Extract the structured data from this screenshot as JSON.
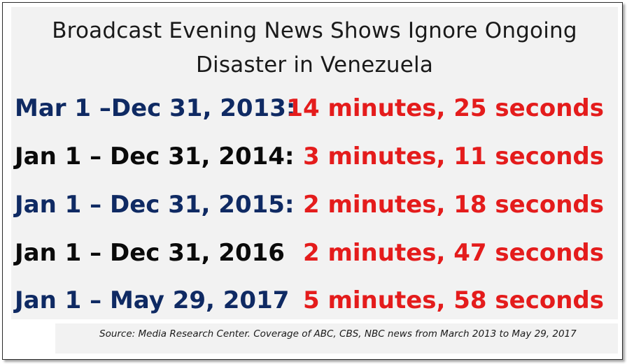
{
  "title": {
    "line1": "Broadcast Evening News Shows Ignore Ongoing",
    "line2": "Disaster in Venezuela"
  },
  "rows": [
    {
      "period": "Mar 1 –Dec 31, 2013:",
      "duration": "14 minutes, 25 seconds",
      "period_color": "#0f2a63"
    },
    {
      "period": "Jan 1 – Dec 31, 2014:",
      "duration": "3 minutes, 11 seconds",
      "period_color": "#0a0a0a"
    },
    {
      "period": "Jan 1 – Dec 31, 2015:",
      "duration": "2 minutes, 18 seconds",
      "period_color": "#0f2a63"
    },
    {
      "period": "Jan 1 – Dec 31, 2016",
      "duration": "2 minutes, 47 seconds",
      "period_color": "#0a0a0a"
    },
    {
      "period": "Jan 1 – May 29, 2017",
      "duration": "5 minutes, 58 seconds",
      "period_color": "#0f2a63"
    }
  ],
  "source": "Source: Media Research Center. Coverage of ABC, CBS, NBC news from March 2013 to May 29, 2017",
  "colors": {
    "duration": "#e41c1c",
    "panel_background": "#f2f2f2"
  }
}
